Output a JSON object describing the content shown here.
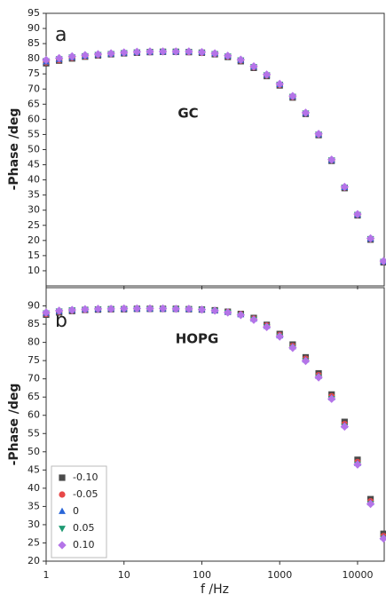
{
  "chart_data": [
    {
      "type": "scatter",
      "xscale": "log",
      "annotations": [
        "a",
        "GC"
      ],
      "ylabel": "-Phase /deg",
      "xlim": [
        1,
        22000
      ],
      "ylim": [
        5,
        95
      ],
      "yticks": [
        10,
        15,
        20,
        25,
        30,
        35,
        40,
        45,
        50,
        55,
        60,
        65,
        70,
        75,
        80,
        85,
        90,
        95
      ],
      "x": [
        1,
        1.468,
        2.154,
        3.162,
        4.642,
        6.813,
        10,
        14.68,
        21.54,
        31.62,
        46.42,
        68.13,
        100,
        146.8,
        215.4,
        316.2,
        464.2,
        681.3,
        1000,
        1468,
        2154,
        3162,
        4642,
        6813,
        10000,
        14678,
        21544
      ],
      "series": [
        {
          "color": "#4a4a4a",
          "marker": "square",
          "values": [
            78.5,
            79.4,
            80.1,
            80.7,
            81.1,
            81.5,
            81.8,
            82.0,
            82.2,
            82.3,
            82.3,
            82.2,
            82.0,
            81.5,
            80.6,
            79.2,
            77.0,
            74.3,
            71.2,
            67.2,
            61.8,
            54.8,
            46.3,
            37.3,
            28.3,
            20.3,
            12.8
          ]
        },
        {
          "color": "#e84848",
          "marker": "circle",
          "values": [
            78.8,
            79.6,
            80.3,
            80.8,
            81.2,
            81.6,
            81.9,
            82.1,
            82.2,
            82.3,
            82.3,
            82.2,
            82.0,
            81.6,
            80.8,
            79.4,
            77.2,
            74.5,
            71.4,
            67.4,
            62.0,
            55.0,
            46.5,
            37.5,
            28.5,
            20.5,
            13.0
          ]
        },
        {
          "color": "#2a66d8",
          "marker": "triangle",
          "values": [
            79.0,
            79.8,
            80.4,
            80.9,
            81.3,
            81.6,
            81.9,
            82.1,
            82.2,
            82.3,
            82.3,
            82.3,
            82.1,
            81.7,
            80.9,
            79.5,
            77.3,
            74.6,
            71.5,
            67.5,
            62.0,
            55.0,
            46.5,
            37.5,
            28.5,
            20.5,
            13.0
          ]
        },
        {
          "color": "#1e9a72",
          "marker": "triangle-down",
          "values": [
            79.3,
            80.0,
            80.6,
            81.0,
            81.4,
            81.7,
            82.0,
            82.2,
            82.3,
            82.4,
            82.4,
            82.3,
            82.1,
            81.7,
            80.9,
            79.6,
            77.4,
            74.7,
            71.6,
            67.6,
            62.1,
            55.1,
            46.6,
            37.6,
            28.6,
            20.6,
            13.1
          ]
        },
        {
          "color": "#b474e8",
          "marker": "diamond",
          "values": [
            79.6,
            80.2,
            80.8,
            81.2,
            81.5,
            81.8,
            82.1,
            82.3,
            82.4,
            82.4,
            82.4,
            82.4,
            82.2,
            81.8,
            81.0,
            79.7,
            77.5,
            74.8,
            71.7,
            67.7,
            62.2,
            55.2,
            46.7,
            37.7,
            28.7,
            20.7,
            13.2
          ]
        }
      ]
    },
    {
      "type": "scatter",
      "xscale": "log",
      "annotations": [
        "b",
        "HOPG"
      ],
      "ylabel": "-Phase /deg",
      "xlabel": "f /Hz",
      "legend": "lower left",
      "xlim": [
        1,
        22000
      ],
      "xticks": [
        1,
        10,
        100,
        1000,
        10000
      ],
      "ylim": [
        20,
        95
      ],
      "yticks": [
        20,
        25,
        30,
        35,
        40,
        45,
        50,
        55,
        60,
        65,
        70,
        75,
        80,
        85,
        90
      ],
      "x": [
        1,
        1.468,
        2.154,
        3.162,
        4.642,
        6.813,
        10,
        14.68,
        21.54,
        31.62,
        46.42,
        68.13,
        100,
        146.8,
        215.4,
        316.2,
        464.2,
        681.3,
        1000,
        1468,
        2154,
        3162,
        4642,
        6813,
        10000,
        14678,
        21544
      ],
      "series": [
        {
          "name": "-0.10",
          "color": "#4a4a4a",
          "marker": "square",
          "values": [
            87.6,
            88.2,
            88.6,
            88.9,
            89.0,
            89.1,
            89.1,
            89.2,
            89.2,
            89.2,
            89.2,
            89.1,
            89.0,
            88.8,
            88.4,
            87.8,
            86.7,
            84.8,
            82.3,
            79.4,
            75.9,
            71.5,
            65.7,
            58.2,
            47.8,
            37.0,
            27.5
          ]
        },
        {
          "name": "-0.05",
          "color": "#e84848",
          "marker": "circle",
          "values": [
            87.8,
            88.4,
            88.7,
            88.9,
            89.1,
            89.1,
            89.2,
            89.2,
            89.2,
            89.2,
            89.2,
            89.1,
            89.0,
            88.7,
            88.3,
            87.7,
            86.5,
            84.6,
            82.0,
            79.0,
            75.5,
            71.0,
            65.2,
            57.6,
            47.2,
            36.4,
            26.9
          ]
        },
        {
          "name": "0",
          "color": "#2a66d8",
          "marker": "triangle",
          "values": [
            88.0,
            88.5,
            88.8,
            89.0,
            89.1,
            89.2,
            89.2,
            89.2,
            89.2,
            89.2,
            89.2,
            89.1,
            89.0,
            88.7,
            88.3,
            87.6,
            86.4,
            84.4,
            81.8,
            78.8,
            75.2,
            70.7,
            64.8,
            57.2,
            46.8,
            36.0,
            26.5
          ]
        },
        {
          "name": "0.05",
          "color": "#1e9a72",
          "marker": "triangle-down",
          "values": [
            88.1,
            88.6,
            88.9,
            89.0,
            89.1,
            89.2,
            89.2,
            89.2,
            89.2,
            89.2,
            89.2,
            89.1,
            89.0,
            88.7,
            88.2,
            87.5,
            86.3,
            84.3,
            81.7,
            78.6,
            75.0,
            70.5,
            64.6,
            57.0,
            46.6,
            35.8,
            26.3
          ]
        },
        {
          "name": "0.10",
          "color": "#b474e8",
          "marker": "diamond",
          "values": [
            88.2,
            88.7,
            88.9,
            89.1,
            89.2,
            89.2,
            89.3,
            89.3,
            89.3,
            89.3,
            89.2,
            89.2,
            89.0,
            88.7,
            88.2,
            87.5,
            86.2,
            84.2,
            81.6,
            78.5,
            74.9,
            70.4,
            64.5,
            56.9,
            46.5,
            35.7,
            26.2
          ]
        }
      ]
    }
  ]
}
